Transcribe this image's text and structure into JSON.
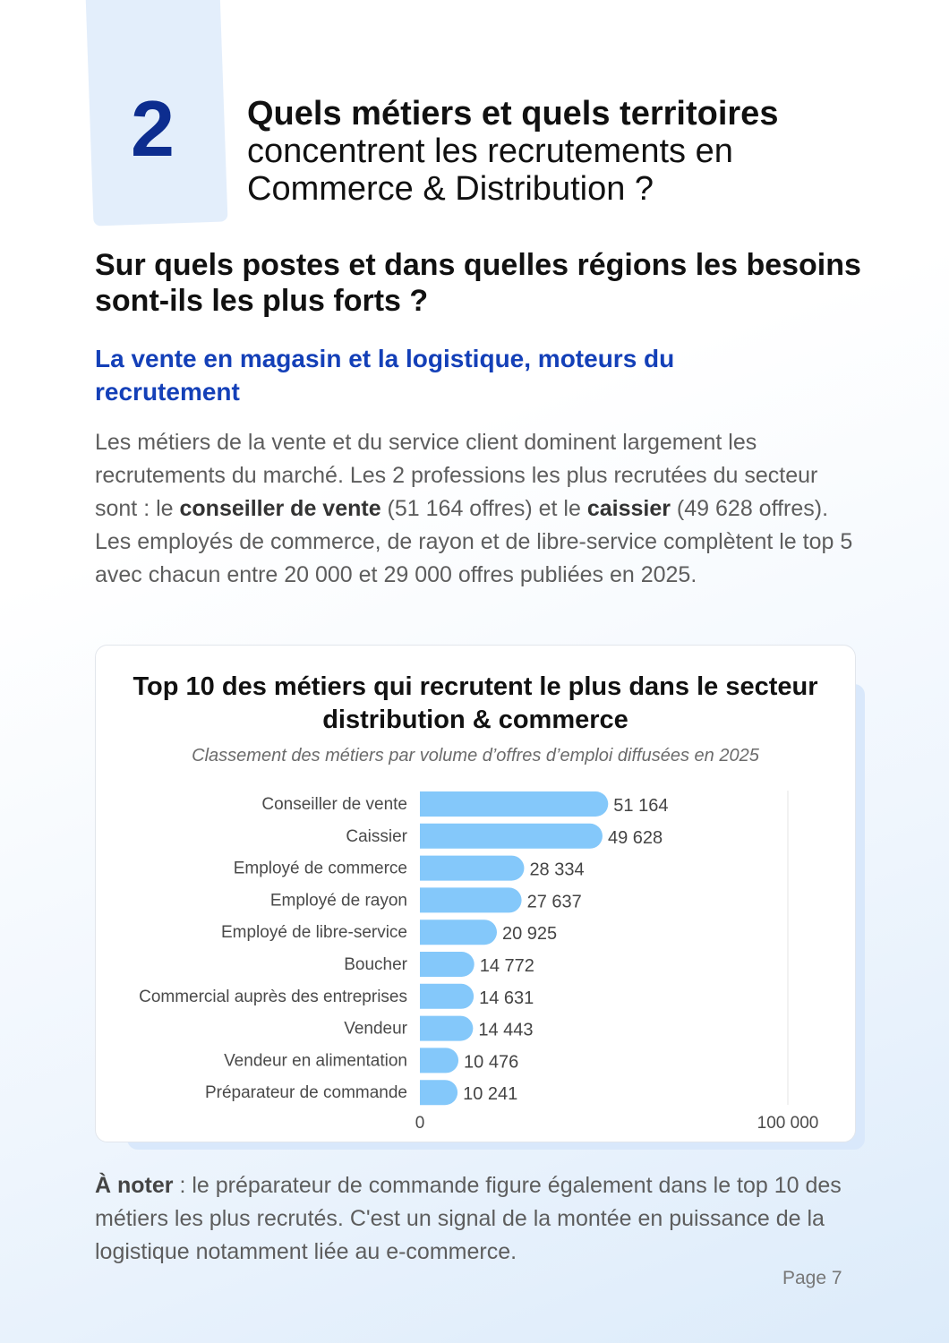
{
  "section": {
    "number": "2",
    "title_bold": "Quels métiers et quels territoires",
    "title_line2": "concentrent les recrutements en",
    "title_line3": "Commerce & Distribution ?"
  },
  "heading": "Sur quels postes et dans quelles régions les besoins sont-ils les plus forts ?",
  "subheading": "La vente en magasin et la logistique, moteurs du recrutement",
  "paragraph": {
    "p1": "Les métiers de la vente et du service client dominent largement les recrutements du marché. Les 2 professions les plus recrutées du secteur sont : le ",
    "b1": "conseiller de vente",
    "p2": " (51 164 offres) et le ",
    "b2": "caissier",
    "p3": " (49 628 offres). Les employés de commerce, de rayon et de libre-service complètent le top 5 avec chacun entre 20 000 et 29 000 offres publiées en 2025."
  },
  "chart_data": {
    "type": "bar",
    "orientation": "horizontal",
    "title": "Top 10 des métiers qui recrutent le plus dans le secteur distribution & commerce",
    "subtitle": "Classement des métiers par volume d’offres d’emploi diffusées en 2025",
    "categories": [
      "Conseiller de vente",
      "Caissier",
      "Employé de commerce",
      "Employé de rayon",
      "Employé de libre-service",
      "Boucher",
      "Commercial auprès des entreprises",
      "Vendeur",
      "Vendeur en alimentation",
      "Préparateur de commande"
    ],
    "values": [
      51164,
      49628,
      28334,
      27637,
      20925,
      14772,
      14631,
      14443,
      10476,
      10241
    ],
    "value_labels": [
      "51 164",
      "49 628",
      "28 334",
      "27 637",
      "20 925",
      "14 772",
      "14 631",
      "14 443",
      "10 476",
      "10 241"
    ],
    "xlim": [
      0,
      100000
    ],
    "x_ticks": [
      "0",
      "100 000"
    ],
    "bar_color": "#84c8fa",
    "grid": false
  },
  "note": {
    "label": "À noter",
    "text": " : le préparateur de commande figure également dans le top 10 des métiers les plus recrutés. C'est un signal de la montée en puissance de la logistique notamment liée au e-commerce."
  },
  "page": "Page 7"
}
